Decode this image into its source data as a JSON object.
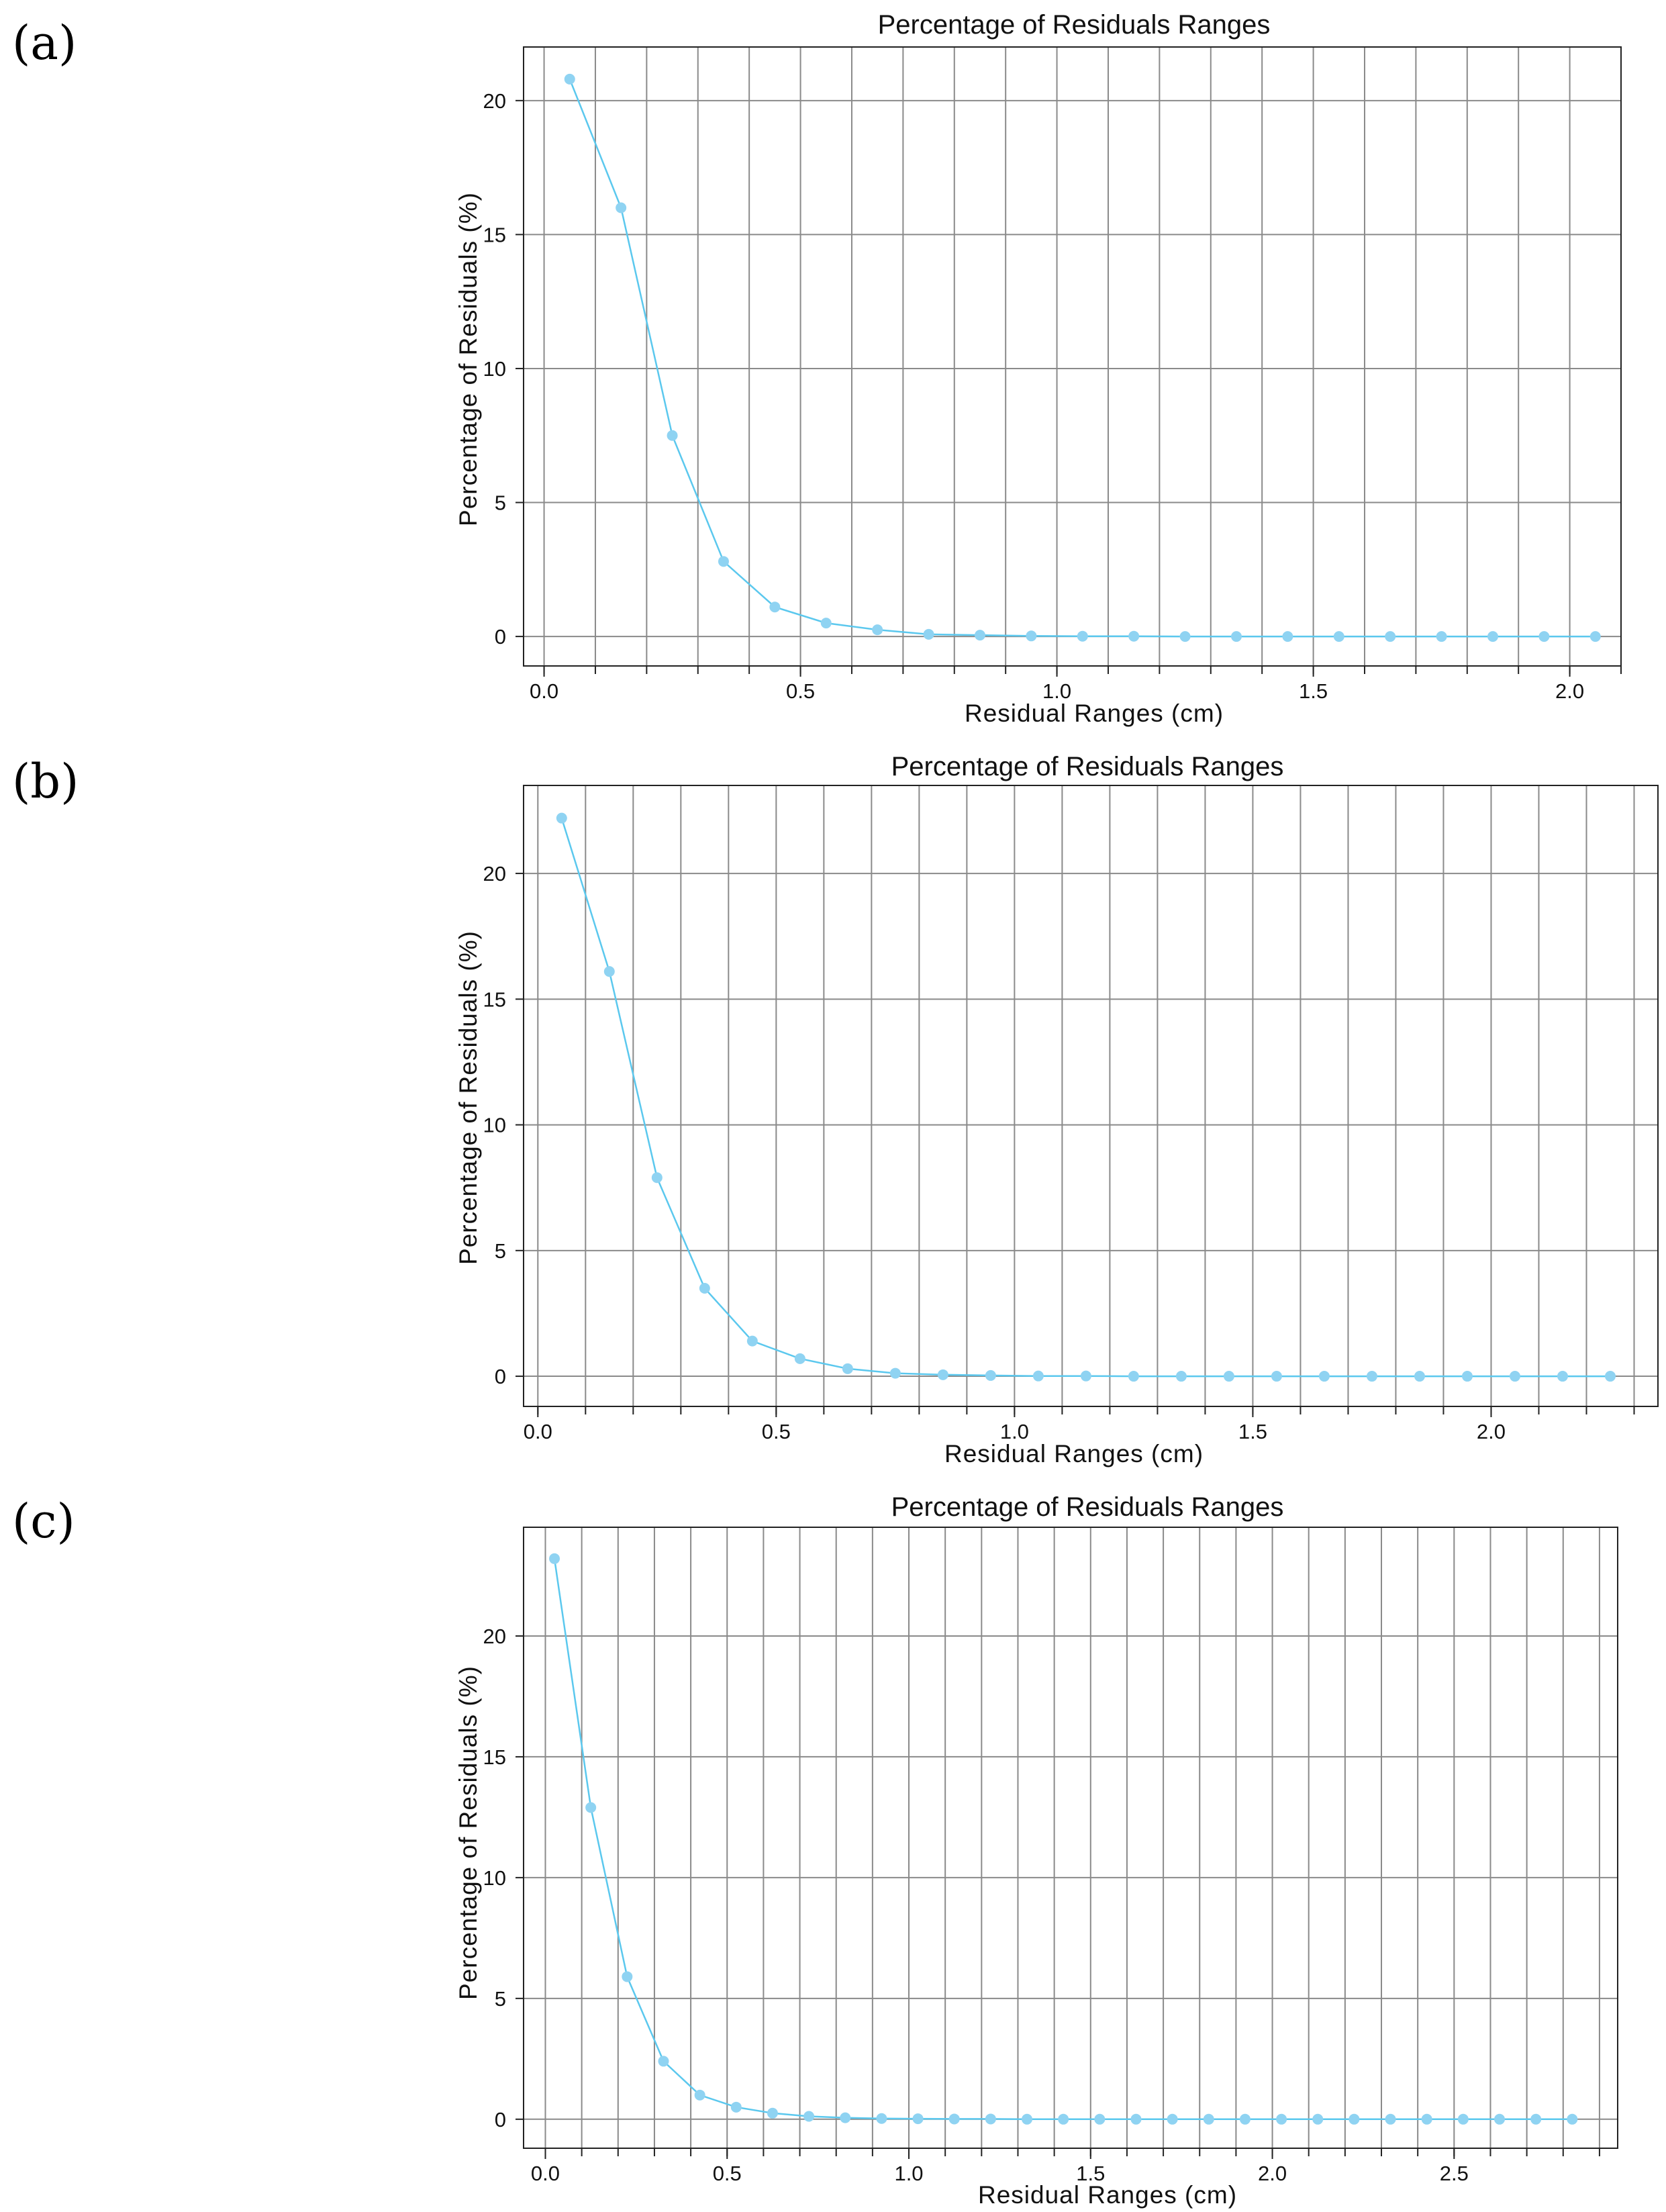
{
  "chart_data": [
    {
      "panel_label": "(a)",
      "type": "line",
      "title": "Percentage of Residuals Ranges",
      "xlabel": "Residual Ranges (cm)",
      "ylabel": "Percentage of Residuals (%)",
      "xlim": [
        -0.04,
        2.1
      ],
      "ylim": [
        -1.1,
        22
      ],
      "xticks": [
        0.0,
        0.5,
        1.0,
        1.5,
        2.0
      ],
      "xtick_labels": [
        "0.0",
        "0.5",
        "1.0",
        "1.5",
        "2.0"
      ],
      "yticks": [
        0,
        5,
        10,
        15,
        20
      ],
      "ytick_labels": [
        "0",
        "5",
        "10",
        "15",
        "20"
      ],
      "grid_x_step": 0.1,
      "grid": true,
      "series": [
        {
          "color": "#5bc8ee",
          "marker_color": "#8fd3f2",
          "x": [
            0.05,
            0.15,
            0.25,
            0.35,
            0.45,
            0.55,
            0.65,
            0.75,
            0.85,
            0.95,
            1.05,
            1.15,
            1.25,
            1.35,
            1.45,
            1.55,
            1.65,
            1.75,
            1.85,
            1.95,
            2.05
          ],
          "y": [
            20.8,
            16.0,
            7.5,
            2.8,
            1.1,
            0.5,
            0.25,
            0.08,
            0.05,
            0.02,
            0.01,
            0.01,
            0.0,
            0.0,
            0.0,
            0.0,
            0.0,
            0.0,
            0.0,
            0.0,
            0.0
          ]
        }
      ]
    },
    {
      "panel_label": "(b)",
      "type": "line",
      "title": "Percentage of Residuals Ranges",
      "xlabel": "Residual Ranges (cm)",
      "ylabel": "Percentage of Residuals (%)",
      "xlim": [
        -0.03,
        2.35
      ],
      "ylim": [
        -1.2,
        23.5
      ],
      "xticks": [
        0.0,
        0.5,
        1.0,
        1.5,
        2.0
      ],
      "xtick_labels": [
        "0.0",
        "0.5",
        "1.0",
        "1.5",
        "2.0"
      ],
      "yticks": [
        0,
        5,
        10,
        15,
        20
      ],
      "ytick_labels": [
        "0",
        "5",
        "10",
        "15",
        "20"
      ],
      "grid_x_step": 0.1,
      "grid": true,
      "series": [
        {
          "color": "#5bc8ee",
          "marker_color": "#8fd3f2",
          "x": [
            0.05,
            0.15,
            0.25,
            0.35,
            0.45,
            0.55,
            0.65,
            0.75,
            0.85,
            0.95,
            1.05,
            1.15,
            1.25,
            1.35,
            1.45,
            1.55,
            1.65,
            1.75,
            1.85,
            1.95,
            2.05,
            2.15,
            2.25
          ],
          "y": [
            22.2,
            16.1,
            7.9,
            3.5,
            1.4,
            0.7,
            0.3,
            0.12,
            0.06,
            0.03,
            0.01,
            0.01,
            0.0,
            0.0,
            0.0,
            0.0,
            0.0,
            0.0,
            0.0,
            0.0,
            0.0,
            0.0,
            0.0
          ]
        }
      ]
    },
    {
      "panel_label": "(c)",
      "type": "line",
      "title": "Percentage of Residuals Ranges",
      "xlabel": "Residual Ranges (cm)",
      "ylabel": "Percentage of Residuals (%)",
      "xlim": [
        -0.06,
        2.95
      ],
      "ylim": [
        -1.2,
        24.5
      ],
      "xticks": [
        0.0,
        0.5,
        1.0,
        1.5,
        2.0,
        2.5
      ],
      "xtick_labels": [
        "0.0",
        "0.5",
        "1.0",
        "1.5",
        "2.0",
        "2.5"
      ],
      "yticks": [
        0,
        5,
        10,
        15,
        20
      ],
      "ytick_labels": [
        "0",
        "5",
        "10",
        "15",
        "20"
      ],
      "grid_x_step": 0.1,
      "grid": true,
      "series": [
        {
          "color": "#5bc8ee",
          "marker_color": "#8fd3f2",
          "x": [
            0.025,
            0.125,
            0.225,
            0.325,
            0.425,
            0.525,
            0.625,
            0.725,
            0.825,
            0.925,
            1.025,
            1.125,
            1.225,
            1.325,
            1.425,
            1.525,
            1.625,
            1.725,
            1.825,
            1.925,
            2.025,
            2.125,
            2.225,
            2.325,
            2.425,
            2.525,
            2.625,
            2.725,
            2.825
          ],
          "y": [
            23.2,
            12.9,
            5.9,
            2.4,
            1.0,
            0.5,
            0.25,
            0.12,
            0.06,
            0.03,
            0.02,
            0.01,
            0.01,
            0.0,
            0.0,
            0.0,
            0.0,
            0.0,
            0.0,
            0.0,
            0.0,
            0.0,
            0.0,
            0.0,
            0.0,
            0.0,
            0.0,
            0.0,
            0.0
          ]
        }
      ]
    }
  ]
}
